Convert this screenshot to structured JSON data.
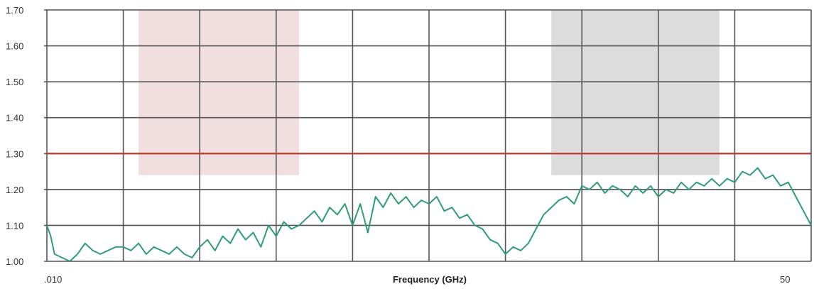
{
  "chart_data": {
    "type": "line",
    "title": "",
    "xlabel": "Frequency (GHz)",
    "ylabel": "",
    "x_tick_labels": [
      ".010",
      "50"
    ],
    "yticks": [
      1.0,
      1.1,
      1.2,
      1.3,
      1.4,
      1.5,
      1.6,
      1.7
    ],
    "ytick_labels": [
      "1.00",
      "1.10",
      "1.20",
      "1.30",
      "1.40",
      "1.50",
      "1.60",
      "1.70"
    ],
    "ylim": [
      1.0,
      1.7
    ],
    "x_divisions": 10,
    "grid": true,
    "limit_line": {
      "value": 1.3,
      "color": "#c0392b"
    },
    "shaded_regions": [
      {
        "from": 1.2,
        "to": 3.3,
        "ymin": 1.24,
        "ymax": 1.7,
        "color": "#f1dede"
      },
      {
        "from": 6.6,
        "to": 8.8,
        "ymin": 1.24,
        "ymax": 1.7,
        "color": "#dcdcdc"
      }
    ],
    "series": [
      {
        "color": "#2e9e72",
        "x": [
          0.0,
          0.05,
          0.1,
          0.2,
          0.3,
          0.4,
          0.5,
          0.6,
          0.7,
          0.8,
          0.9,
          1.0,
          1.1,
          1.2,
          1.3,
          1.4,
          1.5,
          1.6,
          1.7,
          1.8,
          1.9,
          2.0,
          2.1,
          2.2,
          2.3,
          2.4,
          2.5,
          2.6,
          2.7,
          2.8,
          2.9,
          3.0,
          3.1,
          3.2,
          3.3,
          3.4,
          3.5,
          3.6,
          3.7,
          3.8,
          3.9,
          4.0,
          4.1,
          4.2,
          4.3,
          4.4,
          4.5,
          4.6,
          4.7,
          4.8,
          4.9,
          5.0,
          5.1,
          5.2,
          5.3,
          5.4,
          5.5,
          5.6,
          5.7,
          5.8,
          5.9,
          6.0,
          6.1,
          6.2,
          6.3,
          6.4,
          6.5,
          6.6,
          6.7,
          6.8,
          6.9,
          7.0,
          7.1,
          7.2,
          7.3,
          7.4,
          7.5,
          7.6,
          7.7,
          7.8,
          7.9,
          8.0,
          8.1,
          8.2,
          8.3,
          8.4,
          8.5,
          8.6,
          8.7,
          8.8,
          8.9,
          9.0,
          9.1,
          9.2,
          9.3,
          9.4,
          9.5,
          9.6,
          9.7,
          9.8,
          9.9,
          10.0
        ],
        "y": [
          1.1,
          1.07,
          1.02,
          1.01,
          1.0,
          1.02,
          1.05,
          1.03,
          1.02,
          1.03,
          1.04,
          1.04,
          1.03,
          1.05,
          1.02,
          1.04,
          1.03,
          1.02,
          1.04,
          1.02,
          1.01,
          1.04,
          1.06,
          1.03,
          1.07,
          1.05,
          1.09,
          1.06,
          1.08,
          1.04,
          1.1,
          1.07,
          1.11,
          1.09,
          1.1,
          1.12,
          1.14,
          1.11,
          1.15,
          1.13,
          1.16,
          1.1,
          1.16,
          1.08,
          1.18,
          1.15,
          1.19,
          1.16,
          1.18,
          1.15,
          1.17,
          1.16,
          1.18,
          1.14,
          1.15,
          1.12,
          1.13,
          1.1,
          1.09,
          1.06,
          1.05,
          1.02,
          1.04,
          1.03,
          1.05,
          1.09,
          1.13,
          1.15,
          1.17,
          1.18,
          1.16,
          1.21,
          1.2,
          1.22,
          1.19,
          1.21,
          1.2,
          1.18,
          1.21,
          1.19,
          1.21,
          1.18,
          1.2,
          1.19,
          1.22,
          1.2,
          1.22,
          1.21,
          1.23,
          1.21,
          1.23,
          1.22,
          1.25,
          1.24,
          1.26,
          1.23,
          1.24,
          1.21,
          1.22,
          1.18,
          1.14,
          1.1
        ]
      }
    ]
  }
}
